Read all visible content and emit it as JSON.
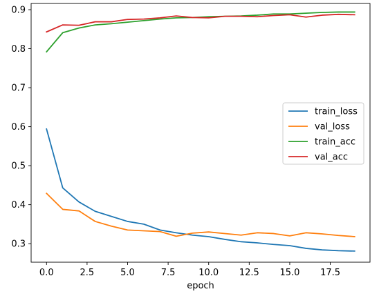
{
  "chart_data": {
    "type": "line",
    "xlabel": "epoch",
    "ylabel": "",
    "xlim": [
      -0.95,
      19.95
    ],
    "ylim": [
      0.2525,
      0.916
    ],
    "xticks": [
      0.0,
      2.5,
      5.0,
      7.5,
      10.0,
      12.5,
      15.0,
      17.5
    ],
    "xtick_labels": [
      "0.0",
      "2.5",
      "5.0",
      "7.5",
      "10.0",
      "12.5",
      "15.0",
      "17.5"
    ],
    "yticks": [
      0.3,
      0.4,
      0.5,
      0.6,
      0.7,
      0.8,
      0.9
    ],
    "ytick_labels": [
      "0.3",
      "0.4",
      "0.5",
      "0.6",
      "0.7",
      "0.8",
      "0.9"
    ],
    "grid": false,
    "legend_position": "center-right",
    "x": [
      0,
      1,
      2,
      3,
      4,
      5,
      6,
      7,
      8,
      9,
      10,
      11,
      12,
      13,
      14,
      15,
      16,
      17,
      18,
      19
    ],
    "series": [
      {
        "name": "train_loss",
        "color": "#1f77b4",
        "values": [
          0.594,
          0.443,
          0.407,
          0.383,
          0.37,
          0.357,
          0.35,
          0.335,
          0.328,
          0.322,
          0.318,
          0.311,
          0.305,
          0.302,
          0.298,
          0.295,
          0.288,
          0.284,
          0.282,
          0.281
        ]
      },
      {
        "name": "val_loss",
        "color": "#ff7f0e",
        "values": [
          0.429,
          0.388,
          0.384,
          0.357,
          0.345,
          0.335,
          0.333,
          0.331,
          0.319,
          0.327,
          0.33,
          0.326,
          0.322,
          0.328,
          0.326,
          0.32,
          0.328,
          0.325,
          0.321,
          0.318
        ]
      },
      {
        "name": "train_acc",
        "color": "#2ca02c",
        "values": [
          0.792,
          0.841,
          0.853,
          0.861,
          0.864,
          0.868,
          0.872,
          0.876,
          0.879,
          0.88,
          0.882,
          0.883,
          0.884,
          0.886,
          0.889,
          0.889,
          0.891,
          0.893,
          0.894,
          0.894
        ]
      },
      {
        "name": "val_acc",
        "color": "#d62728",
        "values": [
          0.843,
          0.861,
          0.86,
          0.869,
          0.869,
          0.875,
          0.876,
          0.879,
          0.884,
          0.88,
          0.879,
          0.883,
          0.883,
          0.882,
          0.885,
          0.887,
          0.881,
          0.886,
          0.888,
          0.887
        ]
      }
    ]
  }
}
